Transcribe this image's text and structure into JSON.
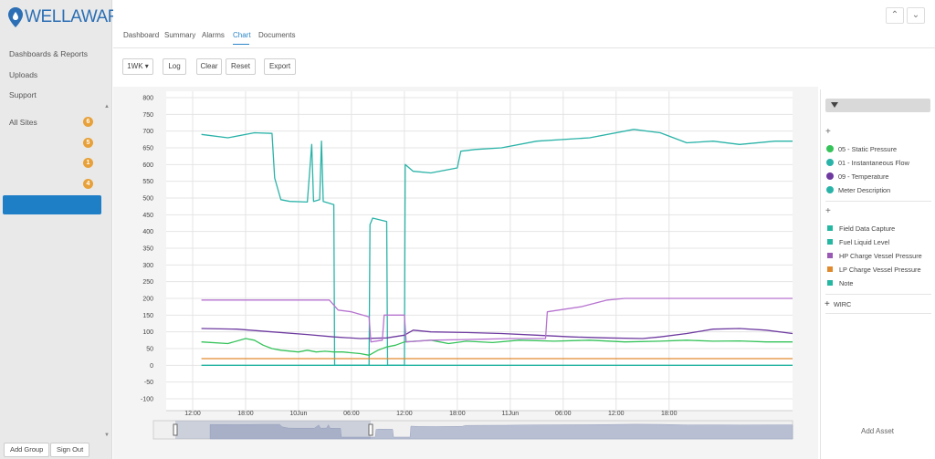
{
  "app": {
    "brand": "WELLAWARE"
  },
  "sidebar": {
    "nav": [
      "Dashboards & Reports",
      "Uploads",
      "Support"
    ],
    "sites": [
      {
        "label": "All Sites",
        "count": "6"
      },
      {
        "label": "",
        "count": "5"
      },
      {
        "label": "",
        "count": "1"
      },
      {
        "label": "",
        "count": "4"
      }
    ],
    "buttons": {
      "add_group": "Add Group",
      "sign_out": "Sign Out"
    }
  },
  "tabs": [
    "Dashboard",
    "Summary",
    "Alarms",
    "Chart",
    "Documents"
  ],
  "active_tab": "Chart",
  "toolbar": {
    "range": "1WK ▾",
    "log": "Log",
    "clear": "Clear",
    "reset": "Reset",
    "export": "Export"
  },
  "legend": {
    "section1": [
      {
        "label": "05 - Static Pressure",
        "color": "#35c35a"
      },
      {
        "label": "01 - Instantaneous Flow",
        "color": "#2ab3a8"
      },
      {
        "label": "09 - Temperature",
        "color": "#6e3aa0"
      },
      {
        "label": "Meter Description",
        "color": "#2ab3a8"
      }
    ],
    "section2": [
      {
        "label": "Field Data Capture",
        "color": "#26b7a3"
      },
      {
        "label": "Fuel Liquid Level",
        "color": "#26b7a3"
      },
      {
        "label": "HP Charge Vessel Pressure",
        "color": "#9b59b6"
      },
      {
        "label": "LP Charge Vessel Pressure",
        "color": "#e08a2e"
      },
      {
        "label": "Note",
        "color": "#26b7a3"
      }
    ],
    "wirc": "WIRC",
    "add_asset": "Add Asset"
  },
  "chart_data": {
    "type": "line",
    "y_ticks": [
      "800",
      "750",
      "700",
      "650",
      "600",
      "550",
      "500",
      "450",
      "400",
      "350",
      "300",
      "250",
      "200",
      "150",
      "100",
      "50",
      "0",
      "-50",
      "-100"
    ],
    "x_ticks": [
      "12:00",
      "18:00",
      "10Jun",
      "06:00",
      "12:00",
      "18:00",
      "11Jun",
      "06:00",
      "12:00",
      "18:00"
    ],
    "ylim": [
      -100,
      800
    ],
    "grid": true,
    "series": [
      {
        "color": "#2ab3a8",
        "points": [
          [
            0,
            690
          ],
          [
            3,
            680
          ],
          [
            6,
            695
          ],
          [
            8,
            693
          ],
          [
            8.3,
            560
          ],
          [
            9,
            495
          ],
          [
            10,
            490
          ],
          [
            12,
            488
          ],
          [
            12.5,
            660
          ],
          [
            12.7,
            490
          ],
          [
            13.4,
            495
          ],
          [
            13.6,
            670
          ],
          [
            13.8,
            490
          ],
          [
            15,
            480
          ],
          [
            15.1,
            0
          ],
          [
            19,
            0
          ],
          [
            19.1,
            420
          ],
          [
            19.4,
            440
          ],
          [
            21,
            430
          ],
          [
            21.1,
            0
          ],
          [
            23,
            0
          ],
          [
            23.1,
            600
          ],
          [
            24,
            580
          ],
          [
            26,
            575
          ],
          [
            29,
            590
          ],
          [
            29.4,
            640
          ],
          [
            31,
            645
          ],
          [
            34,
            650
          ],
          [
            38,
            670
          ],
          [
            44,
            680
          ],
          [
            49,
            705
          ],
          [
            52,
            695
          ],
          [
            55,
            665
          ],
          [
            58,
            670
          ],
          [
            61,
            660
          ],
          [
            65,
            670
          ],
          [
            67,
            670
          ]
        ]
      },
      {
        "color": "#35c35a",
        "points": [
          [
            0,
            70
          ],
          [
            3,
            65
          ],
          [
            5,
            80
          ],
          [
            6,
            75
          ],
          [
            7,
            60
          ],
          [
            8,
            50
          ],
          [
            9,
            45
          ],
          [
            11,
            40
          ],
          [
            12,
            45
          ],
          [
            13,
            40
          ],
          [
            14,
            42
          ],
          [
            15,
            40
          ],
          [
            16,
            40
          ],
          [
            18,
            35
          ],
          [
            19,
            30
          ],
          [
            20,
            45
          ],
          [
            21,
            55
          ],
          [
            22,
            60
          ],
          [
            23,
            70
          ],
          [
            26,
            75
          ],
          [
            28,
            65
          ],
          [
            30,
            72
          ],
          [
            33,
            68
          ],
          [
            36,
            75
          ],
          [
            40,
            72
          ],
          [
            44,
            75
          ],
          [
            48,
            70
          ],
          [
            52,
            72
          ],
          [
            55,
            75
          ],
          [
            58,
            72
          ],
          [
            61,
            73
          ],
          [
            64,
            70
          ],
          [
            67,
            70
          ]
        ]
      },
      {
        "color": "#6e3aa0",
        "points": [
          [
            0,
            110
          ],
          [
            4,
            108
          ],
          [
            8,
            100
          ],
          [
            12,
            92
          ],
          [
            15,
            85
          ],
          [
            18,
            80
          ],
          [
            21,
            82
          ],
          [
            23,
            90
          ],
          [
            24,
            105
          ],
          [
            26,
            100
          ],
          [
            30,
            98
          ],
          [
            34,
            95
          ],
          [
            38,
            90
          ],
          [
            42,
            85
          ],
          [
            46,
            82
          ],
          [
            50,
            80
          ],
          [
            52,
            85
          ],
          [
            55,
            95
          ],
          [
            58,
            108
          ],
          [
            61,
            110
          ],
          [
            64,
            105
          ],
          [
            67,
            95
          ]
        ]
      },
      {
        "color": "#b774d0",
        "points": [
          [
            0,
            195
          ],
          [
            12,
            195
          ],
          [
            14.5,
            195
          ],
          [
            15.5,
            165
          ],
          [
            17,
            160
          ],
          [
            19,
            145
          ],
          [
            19.2,
            70
          ],
          [
            20.5,
            75
          ],
          [
            20.7,
            150
          ],
          [
            23,
            150
          ],
          [
            23.2,
            70
          ],
          [
            26,
            75
          ],
          [
            32,
            78
          ],
          [
            35,
            80
          ],
          [
            39,
            80
          ],
          [
            39.2,
            160
          ],
          [
            43,
            175
          ],
          [
            46,
            195
          ],
          [
            48,
            200
          ],
          [
            55,
            200
          ],
          [
            67,
            200
          ]
        ]
      },
      {
        "color": "#e08a2e",
        "points": [
          [
            0,
            20
          ],
          [
            67,
            20
          ]
        ]
      },
      {
        "color": "#1fb2a0",
        "points": [
          [
            0,
            0
          ],
          [
            67,
            0
          ]
        ]
      }
    ],
    "x_range": [
      -4,
      67
    ]
  }
}
